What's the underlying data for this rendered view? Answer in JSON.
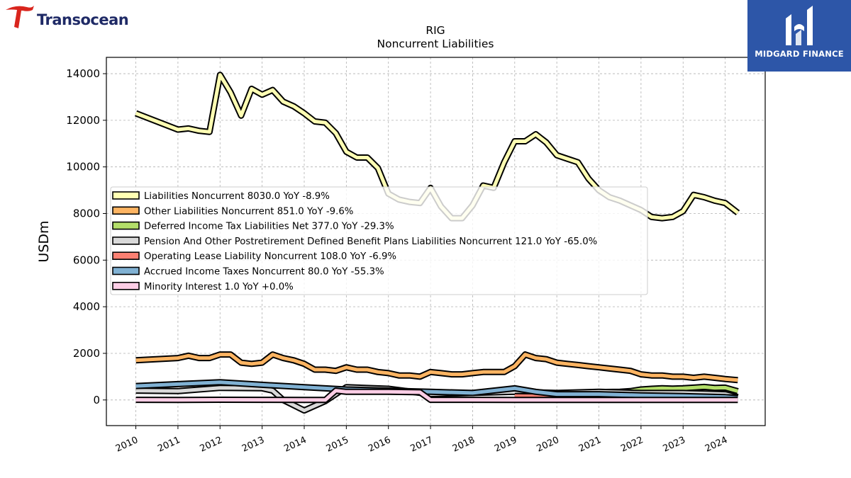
{
  "branding": {
    "left_logo_text": "Transocean",
    "right_logo_text": "MIDGARD FINANCE",
    "right_logo_bg": "#2d56a8"
  },
  "chart_data": {
    "type": "line",
    "title": "RIG",
    "subtitle": "Noncurrent  Liabilities",
    "ylabel": "USDm",
    "xlabel": "",
    "ylim": [
      -1100,
      14700
    ],
    "xlim": [
      2009.3,
      2024.95
    ],
    "yticks": [
      "0",
      "2000",
      "4000",
      "6000",
      "8000",
      "10000",
      "12000",
      "14000"
    ],
    "xticks": [
      "2010",
      "2011",
      "2012",
      "2013",
      "2014",
      "2015",
      "2016",
      "2017",
      "2018",
      "2019",
      "2020",
      "2021",
      "2022",
      "2023",
      "2024"
    ],
    "grid": true,
    "legend_position": "center-left",
    "series": [
      {
        "name": "Liabilities Noncurrent",
        "legend_label": "Liabilities Noncurrent  8030.0 YoY -8.9%",
        "color": "#ffffb3",
        "x": [
          2010.0,
          2011.0,
          2011.25,
          2011.5,
          2011.75,
          2012.0,
          2012.25,
          2012.5,
          2012.75,
          2013.0,
          2013.25,
          2013.5,
          2013.75,
          2014.0,
          2014.25,
          2014.5,
          2014.75,
          2015.0,
          2015.25,
          2015.5,
          2015.75,
          2016.0,
          2016.25,
          2016.5,
          2016.75,
          2017.0,
          2017.25,
          2017.5,
          2017.75,
          2018.0,
          2018.25,
          2018.5,
          2018.75,
          2019.0,
          2019.25,
          2019.5,
          2019.75,
          2020.0,
          2020.25,
          2020.5,
          2020.75,
          2021.0,
          2021.25,
          2021.5,
          2021.75,
          2022.0,
          2022.25,
          2022.5,
          2022.75,
          2023.0,
          2023.25,
          2023.5,
          2023.75,
          2024.0,
          2024.3
        ],
        "values": [
          12300,
          11600,
          11650,
          11550,
          11500,
          13950,
          13200,
          12200,
          13350,
          13100,
          13300,
          12800,
          12600,
          12300,
          11950,
          11900,
          11450,
          10650,
          10400,
          10400,
          9950,
          8850,
          8600,
          8500,
          8450,
          9100,
          8300,
          7800,
          7800,
          8350,
          9200,
          9100,
          10200,
          11100,
          11100,
          11400,
          11050,
          10500,
          10350,
          10200,
          9500,
          9000,
          8700,
          8550,
          8350,
          8150,
          7850,
          7800,
          7850,
          8100,
          8800,
          8700,
          8550,
          8450,
          8030
        ]
      },
      {
        "name": "Other Liabilities Noncurrent",
        "legend_label": "Other Liabilities Noncurrent  851.0 YoY -9.6%",
        "color": "#fdb462",
        "x": [
          2010.0,
          2011.0,
          2011.25,
          2011.5,
          2011.75,
          2012.0,
          2012.25,
          2012.5,
          2012.75,
          2013.0,
          2013.25,
          2013.5,
          2013.75,
          2014.0,
          2014.25,
          2014.5,
          2014.75,
          2015.0,
          2015.25,
          2015.5,
          2015.75,
          2016.0,
          2016.25,
          2016.5,
          2016.75,
          2017.0,
          2017.25,
          2017.5,
          2017.75,
          2018.0,
          2018.25,
          2018.5,
          2018.75,
          2019.0,
          2019.25,
          2019.5,
          2019.75,
          2020.0,
          2020.25,
          2020.5,
          2020.75,
          2021.0,
          2021.25,
          2021.5,
          2021.75,
          2022.0,
          2022.25,
          2022.5,
          2022.75,
          2023.0,
          2023.25,
          2023.5,
          2023.75,
          2024.0,
          2024.3
        ],
        "values": [
          1700,
          1800,
          1900,
          1800,
          1800,
          1950,
          1950,
          1600,
          1550,
          1600,
          1950,
          1800,
          1700,
          1550,
          1300,
          1300,
          1250,
          1400,
          1300,
          1300,
          1200,
          1150,
          1050,
          1050,
          1000,
          1200,
          1150,
          1100,
          1100,
          1150,
          1200,
          1200,
          1200,
          1450,
          1950,
          1800,
          1750,
          1600,
          1550,
          1500,
          1450,
          1400,
          1350,
          1300,
          1250,
          1100,
          1050,
          1050,
          1000,
          1000,
          950,
          1000,
          950,
          900,
          851
        ]
      },
      {
        "name": "Deferred Income Tax Liabilities Net",
        "legend_label": "Deferred Income Tax Liabilities Net  377.0 YoY -29.3%",
        "color": "#b3de69",
        "x": [
          2021.0,
          2021.5,
          2021.75,
          2022.0,
          2022.25,
          2022.5,
          2022.75,
          2023.0,
          2023.25,
          2023.5,
          2023.75,
          2024.0,
          2024.3
        ],
        "values": [
          340,
          350,
          380,
          450,
          480,
          500,
          490,
          500,
          530,
          560,
          520,
          530,
          377
        ]
      },
      {
        "name": "Pension And Other Postretirement Defined Benefit Plans Liabilities Noncurrent",
        "legend_label": "Pension And Other Postretirement Defined Benefit Plans Liabilities Noncurrent  121.0 YoY -65.0%",
        "color": "#d9d9d9",
        "x": [
          2010.0,
          2011.0,
          2012.0,
          2013.0,
          2013.25,
          2013.5,
          2014.0,
          2014.5,
          2015.0,
          2016.0,
          2017.0,
          2018.0,
          2019.0,
          2020.0,
          2021.0,
          2022.0,
          2023.0,
          2023.5,
          2024.0,
          2024.3
        ],
        "values": [
          400,
          380,
          520,
          500,
          400,
          0,
          -450,
          -50,
          550,
          480,
          250,
          300,
          350,
          300,
          350,
          300,
          300,
          280,
          250,
          121
        ]
      },
      {
        "name": "Operating Lease Liability Noncurrent",
        "legend_label": "Operating Lease Liability Noncurrent  108.0 YoY -6.9%",
        "color": "#fb8072",
        "x": [
          2019.0,
          2020.0,
          2021.0,
          2022.0,
          2023.0,
          2024.0,
          2024.3
        ],
        "values": [
          170,
          150,
          140,
          130,
          120,
          115,
          108
        ]
      },
      {
        "name": "Accrued Income Taxes Noncurrent",
        "legend_label": "Accrued Income Taxes Noncurrent  80.0 YoY -55.3%",
        "color": "#80b1d3",
        "x": [
          2010.0,
          2011.0,
          2012.0,
          2013.0,
          2014.0,
          2015.0,
          2016.0,
          2017.0,
          2018.0,
          2019.0,
          2019.5,
          2020.0,
          2021.0,
          2022.0,
          2023.0,
          2024.0,
          2024.3
        ],
        "values": [
          600,
          680,
          760,
          650,
          550,
          450,
          400,
          350,
          300,
          500,
          350,
          250,
          250,
          200,
          170,
          120,
          80
        ]
      },
      {
        "name": "Minority Interest",
        "legend_label": "Minority Interest  1.0 YoY +0.0%",
        "color": "#fccde5",
        "x": [
          2010.0,
          2011.0,
          2012.0,
          2013.0,
          2014.0,
          2014.5,
          2014.75,
          2015.0,
          2016.0,
          2016.75,
          2017.0,
          2018.0,
          2019.0,
          2020.0,
          2021.0,
          2022.0,
          2023.0,
          2024.0,
          2024.3
        ],
        "values": [
          5,
          0,
          10,
          5,
          0,
          0,
          400,
          350,
          350,
          330,
          5,
          5,
          0,
          0,
          0,
          0,
          0,
          1,
          1
        ]
      }
    ]
  }
}
